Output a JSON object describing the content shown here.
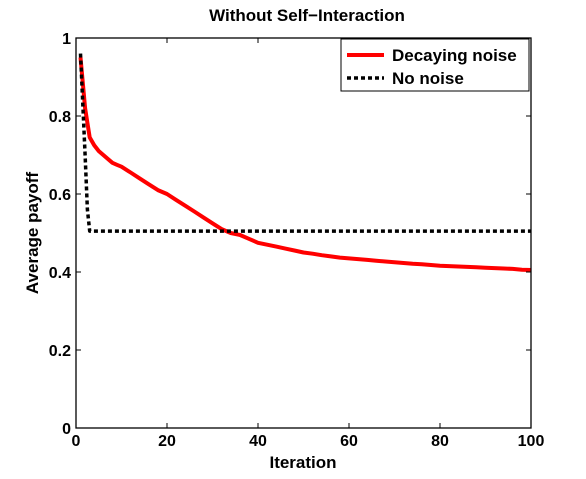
{
  "chart_data": {
    "type": "line",
    "title": "Without Self−Interaction",
    "xlabel": "Iteration",
    "ylabel": "Average payoff",
    "xlim": [
      0,
      100
    ],
    "ylim": [
      0,
      1
    ],
    "xticks": [
      "0",
      "20",
      "40",
      "60",
      "80",
      "100"
    ],
    "yticks": [
      "0",
      "0.2",
      "0.4",
      "0.6",
      "0.8",
      "1"
    ],
    "grid": false,
    "legend_position": "top-right",
    "series": [
      {
        "name": "Decaying noise",
        "color": "#ff0000",
        "style": "solid",
        "x": [
          1,
          2,
          3,
          4,
          5,
          6,
          7,
          8,
          9,
          10,
          12,
          14,
          16,
          18,
          20,
          22,
          24,
          26,
          28,
          30,
          32,
          34,
          36,
          38,
          40,
          42,
          44,
          46,
          48,
          50,
          52,
          54,
          56,
          58,
          60,
          62,
          64,
          66,
          68,
          70,
          72,
          74,
          76,
          78,
          80,
          82,
          84,
          86,
          88,
          90,
          92,
          94,
          96,
          98,
          100
        ],
        "y": [
          0.95,
          0.82,
          0.745,
          0.725,
          0.71,
          0.7,
          0.69,
          0.68,
          0.675,
          0.67,
          0.655,
          0.64,
          0.625,
          0.61,
          0.6,
          0.585,
          0.57,
          0.555,
          0.54,
          0.525,
          0.51,
          0.5,
          0.495,
          0.485,
          0.475,
          0.47,
          0.465,
          0.46,
          0.455,
          0.45,
          0.447,
          0.443,
          0.44,
          0.437,
          0.435,
          0.433,
          0.431,
          0.429,
          0.427,
          0.425,
          0.423,
          0.421,
          0.42,
          0.418,
          0.416,
          0.415,
          0.414,
          0.413,
          0.412,
          0.411,
          0.41,
          0.409,
          0.408,
          0.406,
          0.405
        ]
      },
      {
        "name": "No noise",
        "color": "#000000",
        "style": "dotted",
        "x": [
          1,
          2,
          2.5,
          3,
          100
        ],
        "y": [
          0.96,
          0.7,
          0.56,
          0.505,
          0.505
        ]
      }
    ]
  }
}
